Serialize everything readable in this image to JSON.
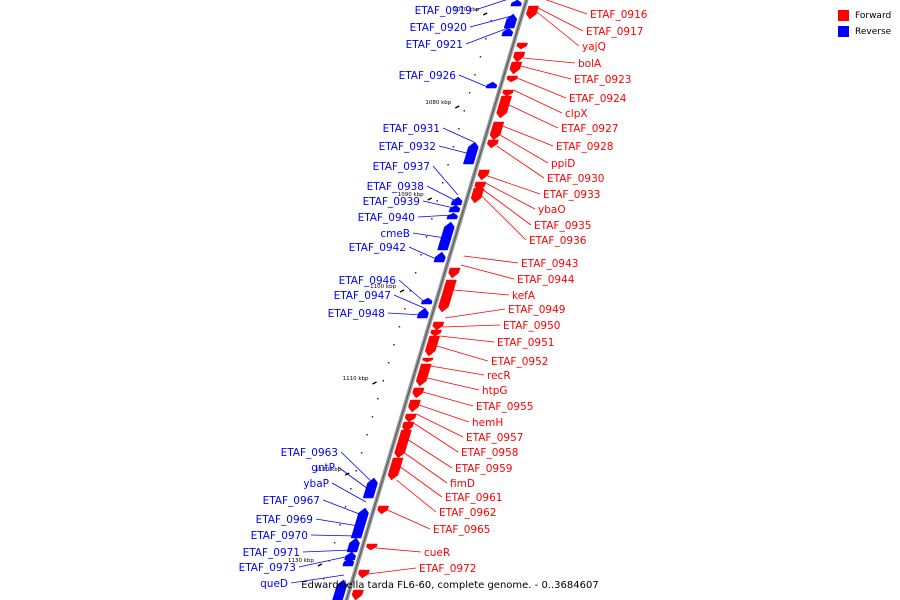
{
  "caption": "Edwardsiella tarda FL6-60, complete genome. - 0..3684607",
  "legend": [
    {
      "label": "Forward",
      "color": "#ff0000"
    },
    {
      "label": "Reverse",
      "color": "#0000ff"
    }
  ],
  "colors": {
    "forward": "#ff0000",
    "reverse": "#0000ff",
    "backbone": "#999999",
    "leader": "#ff0000",
    "leader_rev": "#0000ff"
  },
  "ticks": [
    "1070 kbp",
    "1080 kbp",
    "1090 kbp",
    "1100 kbp",
    "1110 kbp",
    "1120 kbp",
    "1130 kbp"
  ],
  "forward_genes": [
    "ETAF_0916",
    "ETAF_0917",
    "yajQ",
    "bolA",
    "ETAF_0923",
    "ETAF_0924",
    "clpX",
    "ETAF_0927",
    "ETAF_0928",
    "ppiD",
    "ETAF_0930",
    "ETAF_0933",
    "ybaO",
    "ETAF_0935",
    "ETAF_0936",
    "ETAF_0943",
    "ETAF_0944",
    "kefA",
    "ETAF_0949",
    "ETAF_0950",
    "ETAF_0951",
    "ETAF_0952",
    "recR",
    "htpG",
    "ETAF_0955",
    "hemH",
    "ETAF_0957",
    "ETAF_0958",
    "ETAF_0959",
    "fimD",
    "ETAF_0961",
    "ETAF_0962",
    "ETAF_0965",
    "cueR",
    "ETAF_0972"
  ],
  "reverse_genes": [
    "ETAF_0919",
    "ETAF_0920",
    "ETAF_0921",
    "ETAF_0926",
    "ETAF_0931",
    "ETAF_0932",
    "ETAF_0937",
    "ETAF_0938",
    "ETAF_0939",
    "ETAF_0940",
    "cmeB",
    "ETAF_0942",
    "ETAF_0946",
    "ETAF_0947",
    "ETAF_0948",
    "ETAF_0963",
    "gntP",
    "ybaP",
    "ETAF_0967",
    "ETAF_0969",
    "ETAF_0970",
    "ETAF_0971",
    "ETAF_0973",
    "queD"
  ]
}
